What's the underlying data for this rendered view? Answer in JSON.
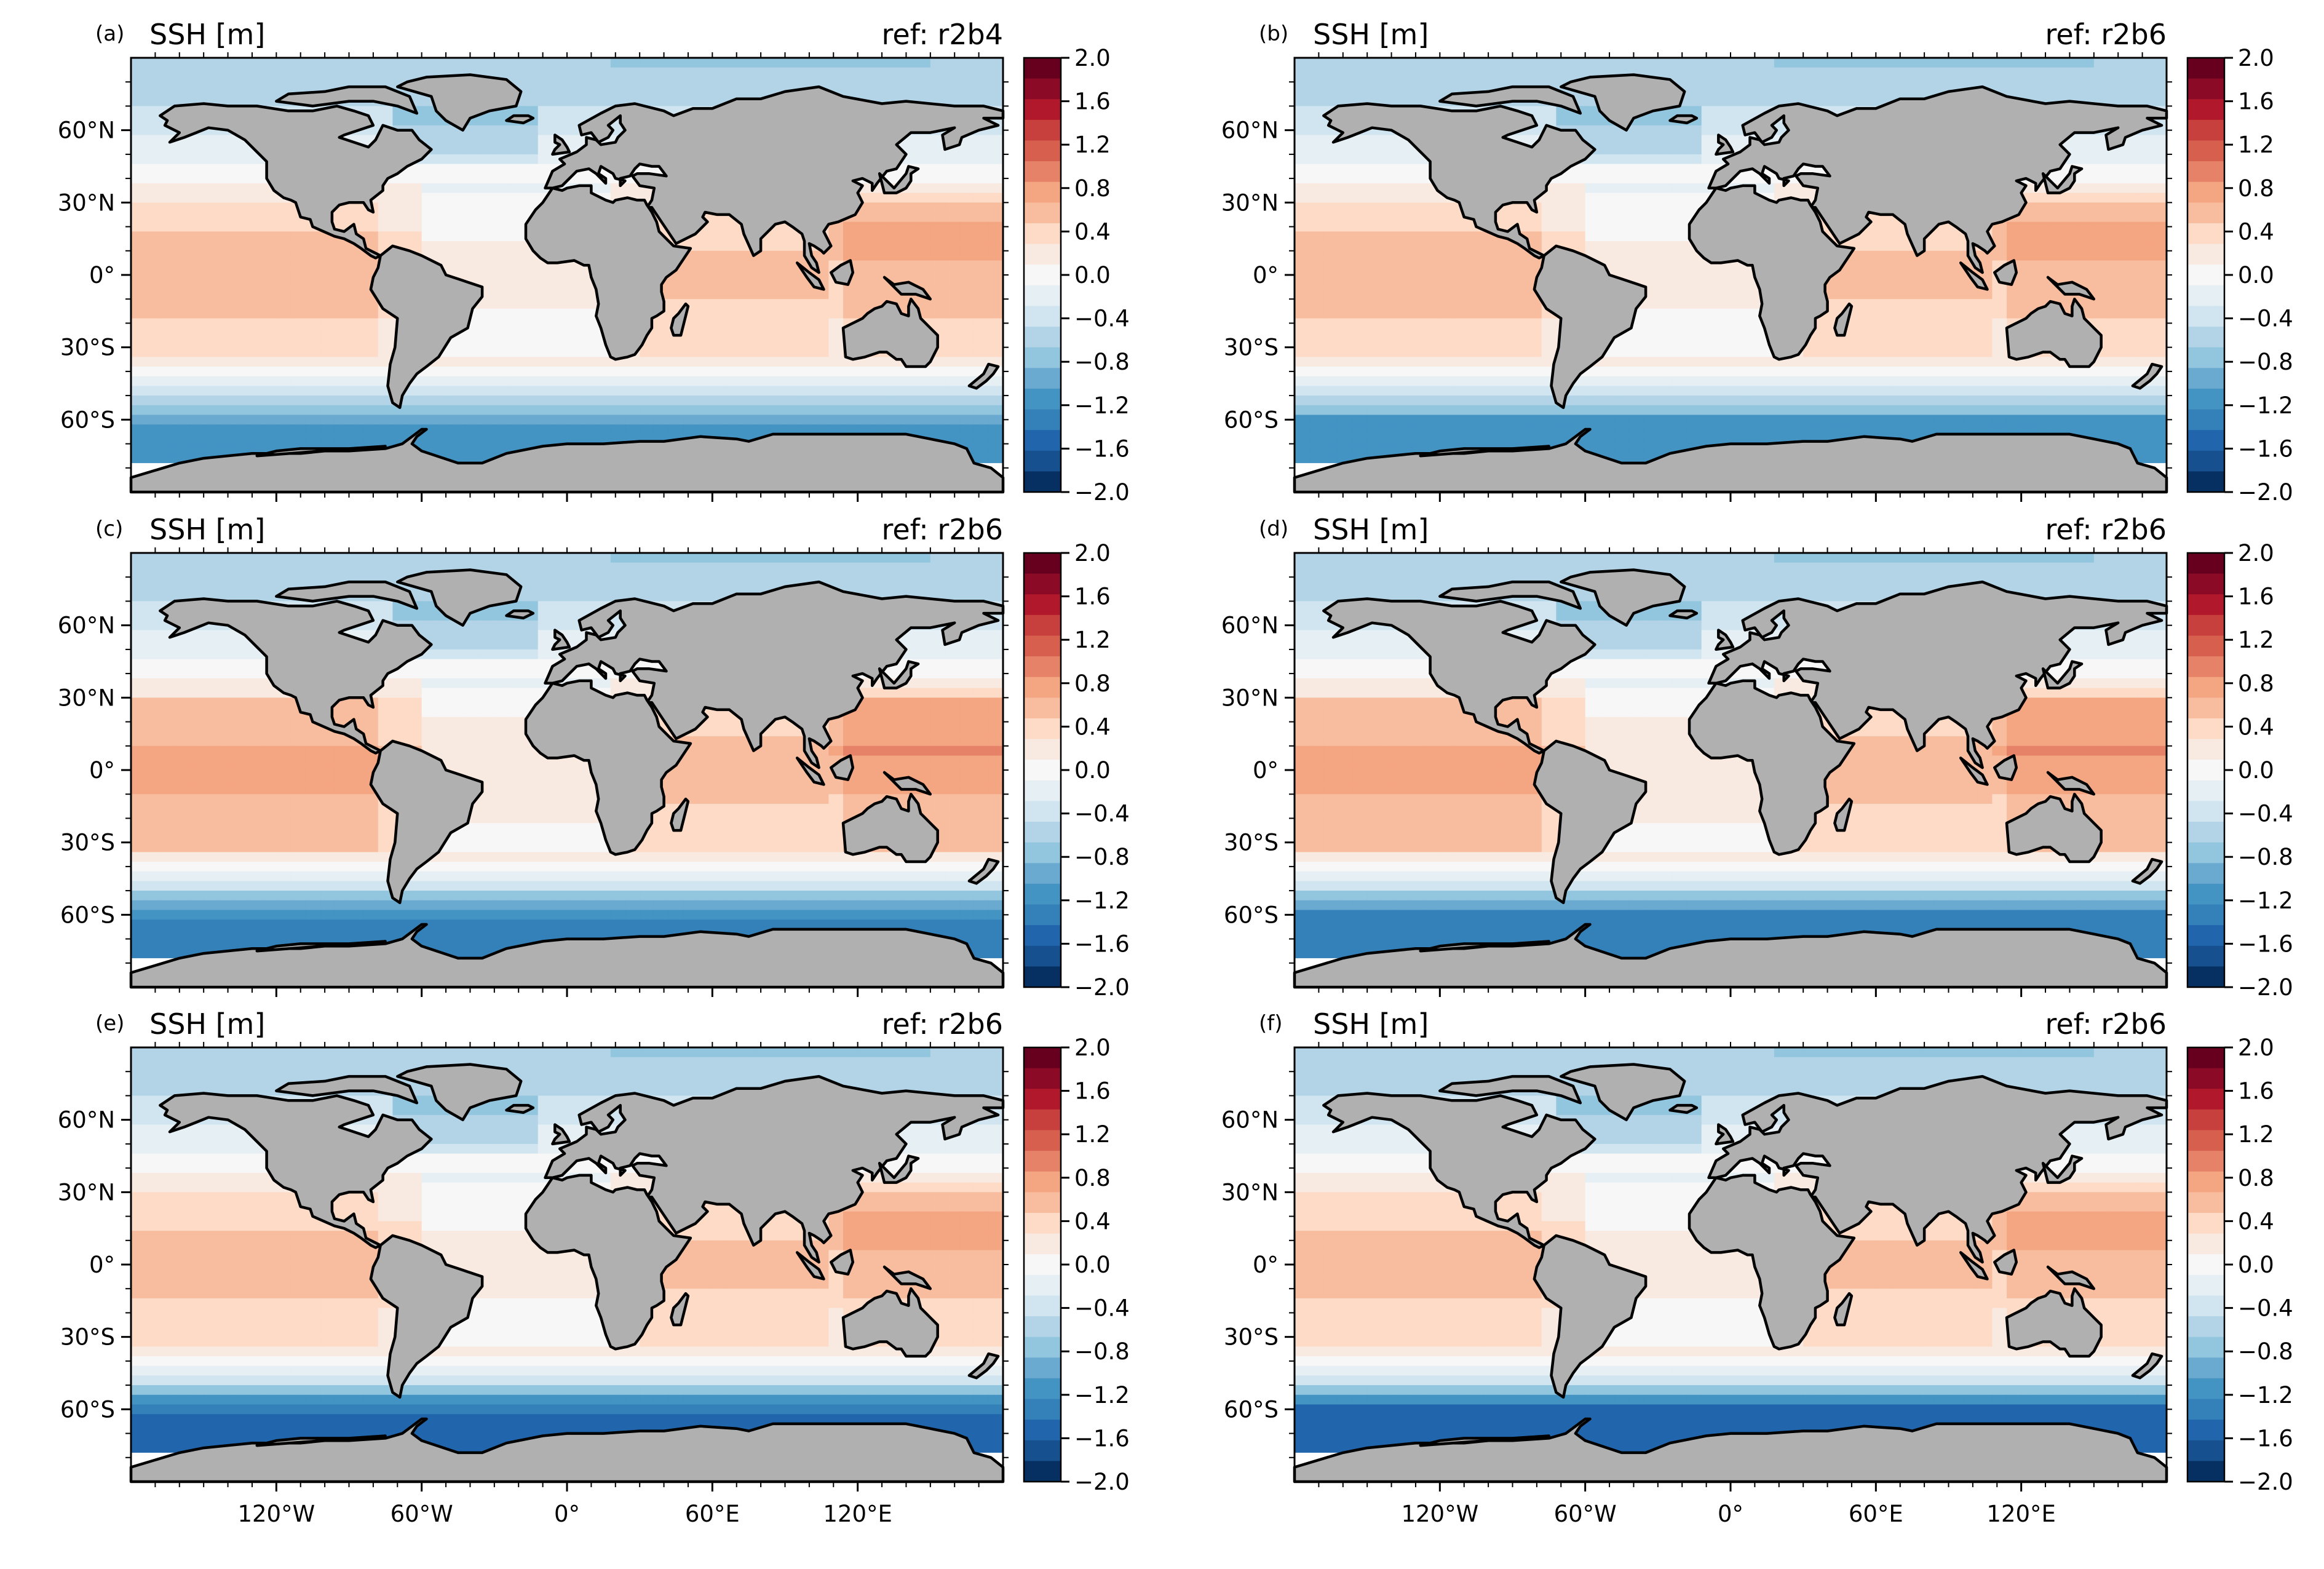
{
  "figure": {
    "lat_ticks": [
      "60°N",
      "30°N",
      "0°",
      "30°S",
      "60°S"
    ],
    "lon_ticks": [
      "120°W",
      "60°W",
      "0°",
      "60°E",
      "120°E"
    ],
    "colorbar": {
      "ticks": [
        "2.0",
        "1.6",
        "1.2",
        "0.8",
        "0.4",
        "0.0",
        "−0.4",
        "−0.8",
        "−1.2",
        "−1.6",
        "−2.0"
      ],
      "colors": [
        "#67001f",
        "#8b0a25",
        "#b2182b",
        "#c7403e",
        "#d6604d",
        "#e58268",
        "#f4a582",
        "#f7bd9e",
        "#fddbc7",
        "#f9eae1",
        "#f7f7f7",
        "#e6eff4",
        "#d1e5f0",
        "#b3d4e7",
        "#92c5de",
        "#6aa9d0",
        "#4393c3",
        "#3481b9",
        "#2166ac",
        "#17508e",
        "#053061"
      ],
      "levels": [
        2.0,
        -2.0
      ]
    },
    "colors": {
      "land": "#b0b0b0",
      "coast": "#000000",
      "ice": "#ffffff"
    },
    "panels": [
      {
        "label": "(a)",
        "title": "SSH [m]",
        "ref": "ref: r2b4",
        "variant": 0
      },
      {
        "label": "(b)",
        "title": "SSH [m]",
        "ref": "ref: r2b6",
        "variant": 1
      },
      {
        "label": "(c)",
        "title": "SSH [m]",
        "ref": "ref: r2b6",
        "variant": 2
      },
      {
        "label": "(d)",
        "title": "SSH [m]",
        "ref": "ref: r2b6",
        "variant": 3
      },
      {
        "label": "(e)",
        "title": "SSH [m]",
        "ref": "ref: r2b6",
        "variant": 4
      },
      {
        "label": "(f)",
        "title": "SSH [m]",
        "ref": "ref: r2b6",
        "variant": 5
      }
    ]
  }
}
